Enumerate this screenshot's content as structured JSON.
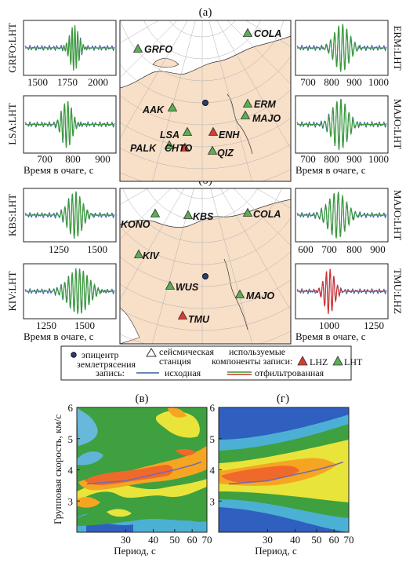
{
  "panel_labels": {
    "a": "(а)",
    "b": "(б)",
    "v": "(в)",
    "g": "(г)"
  },
  "waveforms": [
    {
      "id": "grfo",
      "station": "GRFO:LHT",
      "ticks": [
        "1500",
        "1750",
        "2000"
      ],
      "xlabel": "",
      "color": "green"
    },
    {
      "id": "lsa",
      "station": "LSA:LHT",
      "ticks": [
        "700",
        "800",
        "900"
      ],
      "xlabel": "Время в очаге, с",
      "color": "green"
    },
    {
      "id": "erm",
      "station": "ERM:LHT",
      "ticks": [
        "700",
        "800",
        "900",
        "1000"
      ],
      "xlabel": "",
      "color": "green"
    },
    {
      "id": "majo1",
      "station": "MAJO:LHT",
      "ticks": [
        "700",
        "800",
        "900",
        "1000"
      ],
      "xlabel": "Время в очаге, с",
      "color": "green"
    },
    {
      "id": "kbs",
      "station": "KBS:LHT",
      "ticks": [
        "1250",
        "1500"
      ],
      "xlabel": "",
      "color": "green"
    },
    {
      "id": "kiv",
      "station": "KIV:LHT",
      "ticks": [
        "1250",
        "1500"
      ],
      "xlabel": "Время в очаге, с",
      "color": "green"
    },
    {
      "id": "majo2",
      "station": "MAJO:LHT",
      "ticks": [
        "600",
        "700",
        "800",
        "900"
      ],
      "xlabel": "",
      "color": "green"
    },
    {
      "id": "tmu",
      "station": "TMU:LHZ",
      "ticks": [
        "1000",
        "1250"
      ],
      "xlabel": "Время в очаге, с",
      "color": "red"
    }
  ],
  "map_a": {
    "stations": [
      {
        "name": "COLA",
        "type": "LHT"
      },
      {
        "name": "GRFO",
        "type": "LHT"
      },
      {
        "name": "AAK",
        "type": "LHT"
      },
      {
        "name": "ERM",
        "type": "LHT"
      },
      {
        "name": "MAJO",
        "type": "LHT"
      },
      {
        "name": "LSA",
        "type": "LHT"
      },
      {
        "name": "ENH",
        "type": "LHZ"
      },
      {
        "name": "PALK",
        "type": "LHT"
      },
      {
        "name": "CHTO",
        "type": "LHZ"
      },
      {
        "name": "QIZ",
        "type": "LHT"
      }
    ]
  },
  "map_b": {
    "stations": [
      {
        "name": "KONO",
        "type": "LHT"
      },
      {
        "name": "KBS",
        "type": "LHT"
      },
      {
        "name": "COLA",
        "type": "LHT"
      },
      {
        "name": "KIV",
        "type": "LHT"
      },
      {
        "name": "WUS",
        "type": "LHT"
      },
      {
        "name": "MAJO",
        "type": "LHT"
      },
      {
        "name": "TMU",
        "type": "LHZ"
      }
    ]
  },
  "legend": {
    "epicenter": [
      "эпицентр",
      "землетрясения"
    ],
    "station": [
      "сейсмическая",
      "станция"
    ],
    "components": [
      "используемые",
      "компоненты записи:"
    ],
    "lhz": "LHZ",
    "lht": "LHT",
    "record": "запись:",
    "original": "исходная",
    "filtered": "отфильтрованная"
  },
  "colors": {
    "green": "#3a9a3a",
    "blue": "#3a5f9a",
    "red": "#d03030",
    "land": "#f7dfc8",
    "lhz": "#d83c30",
    "lht": "#58b050"
  },
  "chart_data": [
    {
      "type": "heatmap",
      "id": "v",
      "ylabel": "Групповая скорость, км/с",
      "xlabel": "Период, с",
      "xticks": [
        "30",
        "40",
        "50",
        "60",
        "70"
      ],
      "yticks": [
        "3",
        "4",
        "5",
        "6"
      ],
      "ylim": [
        2,
        6
      ],
      "xlim": [
        18,
        70
      ],
      "dispersion_curve": {
        "x": [
          20,
          30,
          40,
          50,
          60,
          66
        ],
        "y": [
          3.55,
          3.65,
          3.85,
          4.0,
          4.15,
          4.25
        ]
      }
    },
    {
      "type": "heatmap",
      "id": "g",
      "ylabel": "",
      "xlabel": "Период, с",
      "xticks": [
        "30",
        "40",
        "50",
        "60",
        "70"
      ],
      "yticks": [
        "3",
        "4",
        "5",
        "6"
      ],
      "ylim": [
        2,
        6
      ],
      "xlim": [
        18,
        70
      ],
      "dispersion_curve": {
        "x": [
          20,
          30,
          40,
          50,
          60,
          66
        ],
        "y": [
          3.55,
          3.65,
          3.85,
          4.0,
          4.15,
          4.25
        ]
      }
    }
  ]
}
